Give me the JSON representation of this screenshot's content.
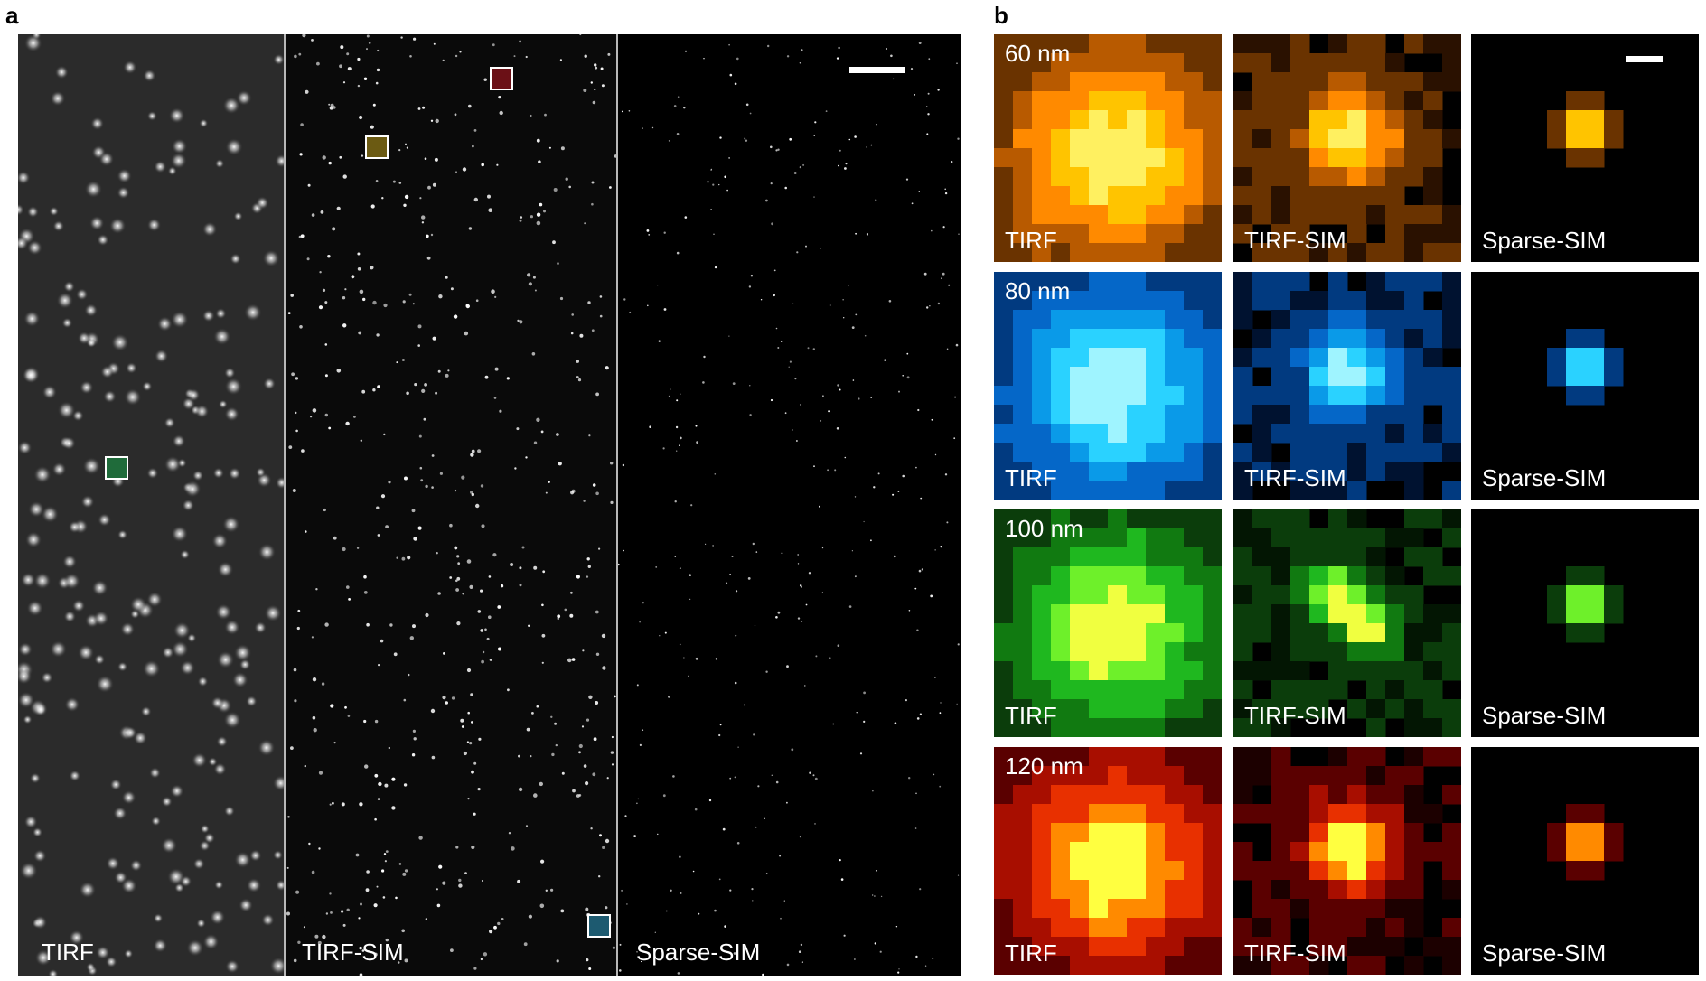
{
  "figure": {
    "panel_a": {
      "letter": "a",
      "strips": [
        {
          "label": "TIRF",
          "style": "blurred"
        },
        {
          "label": "TIRF-SIM",
          "style": "sharp"
        },
        {
          "label": "Sparse-SIM",
          "style": "sparse"
        }
      ],
      "roi_colors": [
        "#1f6b3a",
        "#6b5a12",
        "#6b1016",
        "#1d5a70"
      ],
      "scale_bar": true
    },
    "panel_b": {
      "letter": "b",
      "methods": [
        "TIRF",
        "TIRF-SIM",
        "Sparse-SIM"
      ],
      "rows": [
        {
          "size": "60 nm",
          "palette": "orange"
        },
        {
          "size": "80 nm",
          "palette": "cyan"
        },
        {
          "size": "100 nm",
          "palette": "green"
        },
        {
          "size": "120 nm",
          "palette": "red"
        }
      ],
      "scale_bar": true
    }
  }
}
